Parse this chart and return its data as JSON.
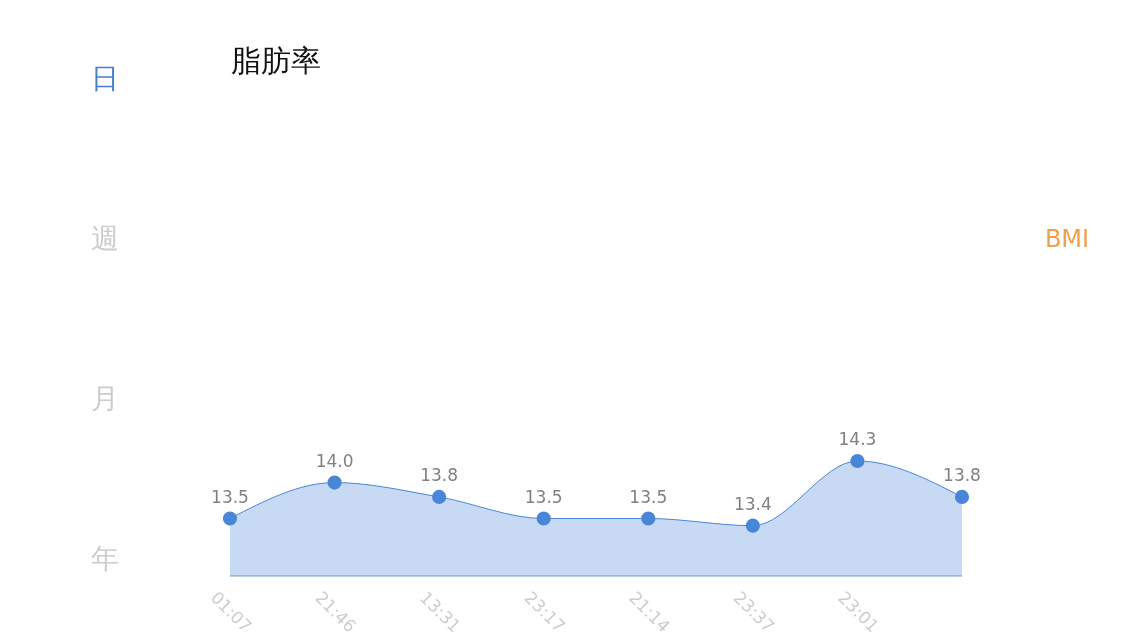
{
  "chart_data": {
    "type": "area",
    "title": "脂肪率",
    "categories": [
      "01:07",
      "21:46",
      "13:31",
      "23:17",
      "21:14",
      "23:37",
      "23:01",
      null
    ],
    "series": [
      {
        "color": "#4a86d8",
        "values": [
          13.5,
          14.0,
          13.8,
          13.5,
          13.5,
          13.4,
          14.3,
          13.8
        ],
        "value_labels": [
          "13.5",
          "14.0",
          "13.8",
          "13.5",
          "13.5",
          "13.4",
          "14.3",
          "13.8"
        ]
      }
    ],
    "ref_lines": [
      {
        "axis": "y",
        "value": 12.7,
        "color": "#a9bccd"
      }
    ],
    "annotations": [
      "日",
      "週",
      "月",
      "年",
      "BMI"
    ]
  }
}
